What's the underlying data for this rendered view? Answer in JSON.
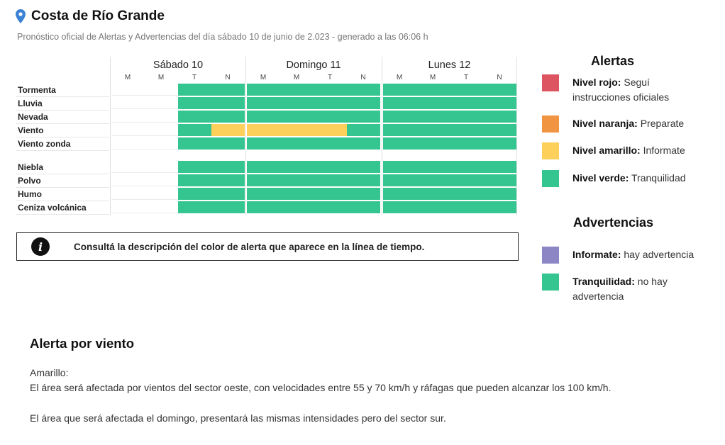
{
  "header": {
    "location": "Costa de Río Grande",
    "subtitle": "Pronóstico oficial de Alertas y Advertencias del día sábado 10 de junio de 2.023 - generado a las 06:06 h"
  },
  "colors": {
    "rojo": "#dc5560",
    "naranja": "#f19441",
    "amarillo": "#fdd05c",
    "verde": "#35c590",
    "violeta": "#8c86c4"
  },
  "days": [
    {
      "name": "Sábado 10",
      "slots": [
        "M",
        "M",
        "T",
        "N"
      ]
    },
    {
      "name": "Domingo 11",
      "slots": [
        "M",
        "M",
        "T",
        "N"
      ]
    },
    {
      "name": "Lunes 12",
      "slots": [
        "M",
        "M",
        "T",
        "N"
      ]
    }
  ],
  "rows": [
    {
      "label": "Tormenta",
      "cells": [
        "",
        "",
        "v",
        "v",
        "v",
        "v",
        "v",
        "v",
        "v",
        "v",
        "v",
        "v"
      ]
    },
    {
      "label": "Lluvia",
      "cells": [
        "",
        "",
        "v",
        "v",
        "v",
        "v",
        "v",
        "v",
        "v",
        "v",
        "v",
        "v"
      ]
    },
    {
      "label": "Nevada",
      "cells": [
        "",
        "",
        "v",
        "v",
        "v",
        "v",
        "v",
        "v",
        "v",
        "v",
        "v",
        "v"
      ]
    },
    {
      "label": "Viento",
      "cells": [
        "",
        "",
        "v",
        "a",
        "a",
        "a",
        "a",
        "v",
        "v",
        "v",
        "v",
        "v"
      ]
    },
    {
      "label": "Viento zonda",
      "cells": [
        "",
        "",
        "v",
        "v",
        "v",
        "v",
        "v",
        "v",
        "v",
        "v",
        "v",
        "v"
      ]
    },
    {
      "label": "Niebla",
      "cells": [
        "",
        "",
        "v",
        "v",
        "v",
        "v",
        "v",
        "v",
        "v",
        "v",
        "v",
        "v"
      ]
    },
    {
      "label": "Polvo",
      "cells": [
        "",
        "",
        "v",
        "v",
        "v",
        "v",
        "v",
        "v",
        "v",
        "v",
        "v",
        "v"
      ]
    },
    {
      "label": "Humo",
      "cells": [
        "",
        "",
        "v",
        "v",
        "v",
        "v",
        "v",
        "v",
        "v",
        "v",
        "v",
        "v"
      ]
    },
    {
      "label": "Ceniza volcánica",
      "cells": [
        "",
        "",
        "v",
        "v",
        "v",
        "v",
        "v",
        "v",
        "v",
        "v",
        "v",
        "v"
      ]
    }
  ],
  "info": {
    "icon": "info-icon",
    "text": "Consultá la descripción del color de alerta que aparece en la línea de tiempo."
  },
  "alertas": {
    "title": "Alertas",
    "items": [
      {
        "bold": "Nivel rojo:",
        "text": " Seguí instrucciones oficiales",
        "color": "#dc5560"
      },
      {
        "bold": "Nivel naranja:",
        "text": " Preparate",
        "color": "#f19441"
      },
      {
        "bold": "Nivel amarillo:",
        "text": " Informate",
        "color": "#fdd05c"
      },
      {
        "bold": "Nivel verde:",
        "text": " Tranquilidad",
        "color": "#35c590"
      }
    ]
  },
  "advertencias": {
    "title": "Advertencias",
    "items": [
      {
        "bold": "Informate:",
        "text": " hay advertencia",
        "color": "#8c86c4"
      },
      {
        "bold": "Tranquilidad:",
        "text": " no hay advertencia",
        "color": "#35c590"
      }
    ]
  },
  "detail": {
    "title": "Alerta por viento",
    "level": "Amarillo:",
    "para1": "El área será afectada por vientos del sector oeste, con velocidades entre 55 y 70 km/h y ráfagas que pueden alcanzar los 100 km/h.",
    "para2": "El área que será afectada el domingo, presentará las mismas intensidades pero del sector sur."
  }
}
